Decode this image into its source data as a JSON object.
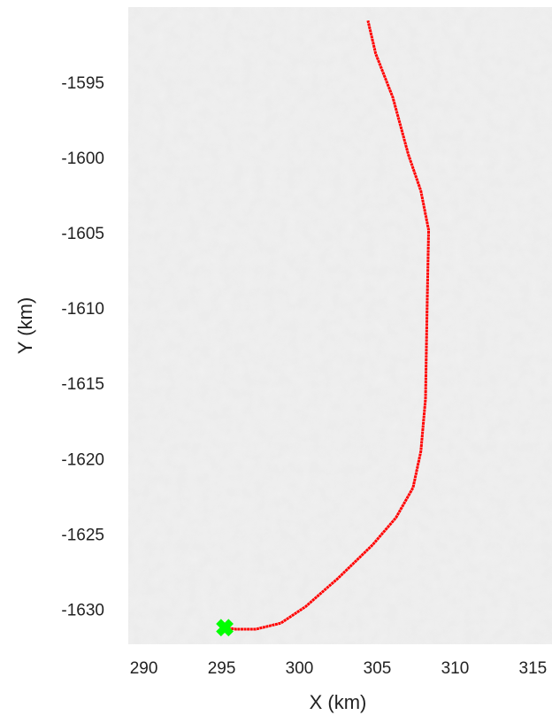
{
  "chart_data": {
    "type": "line",
    "x_label": "X (km)",
    "y_label": "Y (km)",
    "x": [
      295.2,
      295.9,
      297.2,
      298.8,
      300.4,
      302.5,
      304.7,
      306.2,
      307.3,
      307.8,
      308.1,
      308.2,
      308.3,
      307.8,
      307.0,
      306.0,
      304.9,
      304.4
    ],
    "series": [
      {
        "color": "#ff0000",
        "values": [
          -1631.1,
          -1631.2,
          -1631.2,
          -1630.8,
          -1629.7,
          -1627.8,
          -1625.6,
          -1623.8,
          -1621.8,
          -1619.4,
          -1615.9,
          -1610.0,
          -1604.7,
          -1602.1,
          -1599.7,
          -1595.9,
          -1593.0,
          -1590.8
        ]
      }
    ],
    "marker": {
      "x": 295.2,
      "y": -1631.1,
      "color": "#00ff00"
    },
    "xlim": [
      289,
      316
    ],
    "xticks": [
      290,
      295,
      300,
      305,
      310,
      315
    ],
    "ylim": [
      -1632.2,
      -1589.9
    ],
    "yticks": [
      -1595,
      -1600,
      -1605,
      -1610,
      -1615,
      -1620,
      -1625,
      -1630
    ]
  }
}
